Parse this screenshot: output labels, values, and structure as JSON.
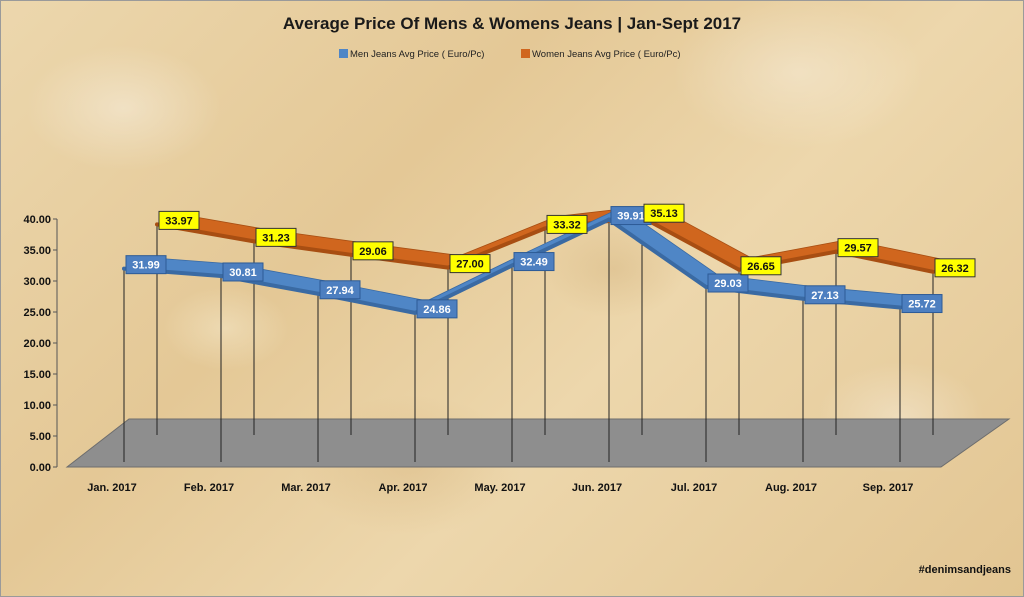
{
  "chart_data": {
    "type": "line",
    "title": "Average Price Of Mens & Womens Jeans | Jan-Sept 2017",
    "categories": [
      "Jan. 2017",
      "Feb. 2017",
      "Mar. 2017",
      "Apr. 2017",
      "May. 2017",
      "Jun. 2017",
      "Jul. 2017",
      "Aug. 2017",
      "Sep. 2017"
    ],
    "series": [
      {
        "name": "Men Jeans Avg Price ( Euro/Pc)",
        "color": "#4f86c6",
        "values": [
          31.99,
          30.81,
          27.94,
          24.86,
          32.49,
          39.91,
          29.03,
          27.13,
          25.72
        ],
        "labels": [
          "31.99",
          "30.81",
          "27.94",
          "24.86",
          "32.49",
          "39.91",
          "29.03",
          "27.13",
          "25.72"
        ]
      },
      {
        "name": "Women Jeans Avg Price ( Euro/Pc)",
        "color": "#d0661e",
        "values": [
          33.97,
          31.23,
          29.06,
          27.0,
          33.32,
          35.13,
          26.65,
          29.57,
          26.32
        ],
        "labels": [
          "33.97",
          "31.23",
          "29.06",
          "27.00",
          "33.32",
          "35.13",
          "26.65",
          "29.57",
          "26.32"
        ]
      }
    ],
    "y_ticks": [
      "0.00",
      "5.00",
      "10.00",
      "15.00",
      "20.00",
      "25.00",
      "30.00",
      "35.00",
      "40.00"
    ],
    "ylim": [
      0,
      40
    ],
    "grid": false,
    "legend": "top-center",
    "style": "3d-line"
  },
  "watermark": "#denimsandjeans"
}
